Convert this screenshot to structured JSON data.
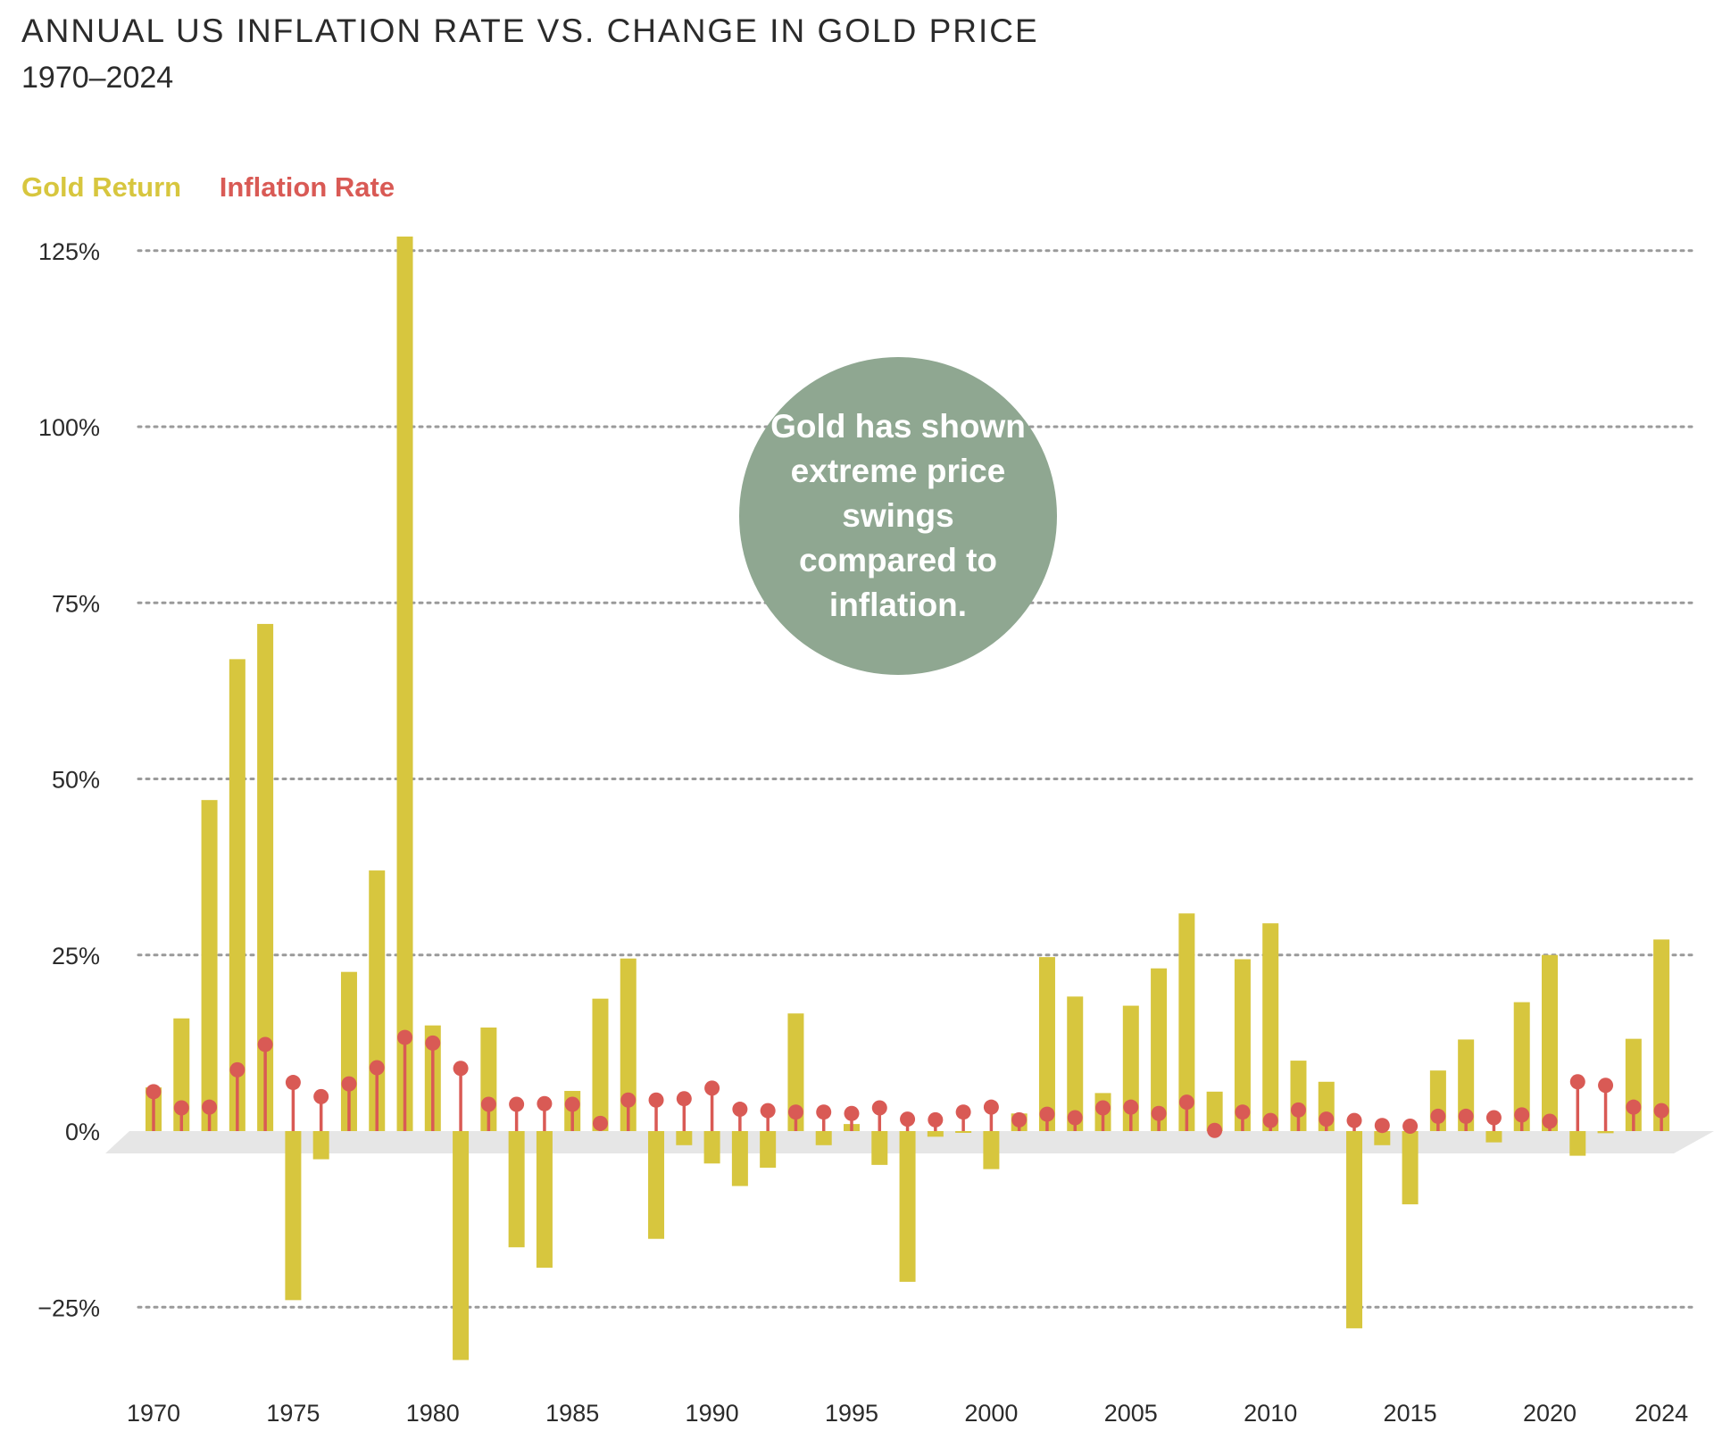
{
  "header": {
    "title": "ANNUAL US INFLATION RATE VS. CHANGE IN GOLD PRICE",
    "subtitle": "1970–2024"
  },
  "legend": {
    "gold_label": "Gold Return",
    "inflation_label": "Inflation Rate"
  },
  "callout": {
    "text": "Gold has shown extreme price swings compared to inflation."
  },
  "colors": {
    "gold": "#d7c63e",
    "inflation": "#d95a55",
    "callout": "#8fa791",
    "floor": "#e6e6e6",
    "grid": "#9a9a9a"
  },
  "chart_data": {
    "type": "bar",
    "title": "ANNUAL US INFLATION RATE VS. CHANGE IN GOLD PRICE",
    "subtitle": "1970–2024",
    "ylim": [
      -32,
      127
    ],
    "yticks": [
      125,
      100,
      75,
      50,
      25,
      0,
      -25
    ],
    "ytick_labels": [
      "125%",
      "100%",
      "75%",
      "50%",
      "25%",
      "0%",
      "−25%"
    ],
    "x": [
      1970,
      1971,
      1972,
      1973,
      1974,
      1975,
      1976,
      1977,
      1978,
      1979,
      1980,
      1981,
      1982,
      1983,
      1984,
      1985,
      1986,
      1987,
      1988,
      1989,
      1990,
      1991,
      1992,
      1993,
      1994,
      1995,
      1996,
      1997,
      1998,
      1999,
      2000,
      2001,
      2002,
      2003,
      2004,
      2005,
      2006,
      2007,
      2008,
      2009,
      2010,
      2011,
      2012,
      2013,
      2014,
      2015,
      2016,
      2017,
      2018,
      2019,
      2020,
      2021,
      2022,
      2023,
      2024
    ],
    "xtick_labels": [
      "1970",
      "1975",
      "1980",
      "1985",
      "1990",
      "1995",
      "2000",
      "2005",
      "2010",
      "2015",
      "2020",
      "2024"
    ],
    "grid": true,
    "legend_position": "top-left",
    "series": [
      {
        "name": "Gold Return",
        "type": "bar",
        "values": [
          6.2,
          16,
          47,
          67,
          72,
          -24,
          -4,
          22.6,
          37,
          127,
          15,
          -32.5,
          14.7,
          -16.5,
          -19.4,
          5.7,
          18.8,
          24.5,
          -15.3,
          -2,
          -4.6,
          -7.8,
          -5.2,
          16.7,
          -2,
          1,
          -4.8,
          -21.4,
          -0.8,
          0,
          -5.4,
          2.5,
          24.7,
          19.1,
          5.4,
          17.8,
          23.1,
          30.9,
          5.6,
          24.4,
          29.5,
          10,
          7,
          -28,
          -2,
          -10.4,
          8.6,
          13,
          -1.6,
          18.3,
          25,
          -3.5,
          -0.3,
          13.1,
          27.2
        ]
      },
      {
        "name": "Inflation Rate",
        "type": "lollipop",
        "values": [
          5.6,
          3.3,
          3.4,
          8.7,
          12.3,
          6.9,
          4.9,
          6.7,
          9,
          13.3,
          12.5,
          8.9,
          3.8,
          3.8,
          3.9,
          3.8,
          1.1,
          4.4,
          4.4,
          4.6,
          6.1,
          3.1,
          2.9,
          2.7,
          2.7,
          2.5,
          3.3,
          1.7,
          1.6,
          2.7,
          3.4,
          1.6,
          2.4,
          1.9,
          3.3,
          3.4,
          2.5,
          4.1,
          0.1,
          2.7,
          1.5,
          3,
          1.7,
          1.5,
          0.8,
          0.7,
          2.1,
          2.1,
          1.9,
          2.3,
          1.4,
          7,
          6.5,
          3.4,
          2.9
        ]
      }
    ]
  }
}
